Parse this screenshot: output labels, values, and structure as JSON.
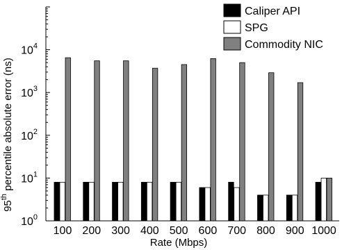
{
  "chart_data": {
    "type": "bar",
    "xlabel": "Rate (Mbps)",
    "ylabel_parts": [
      "95",
      "th",
      " percentile absolute error (ns)"
    ],
    "yscale": "log",
    "ylim": [
      1,
      100000
    ],
    "y_ticks": [
      {
        "base": "10",
        "exp": "0"
      },
      {
        "base": "10",
        "exp": "1"
      },
      {
        "base": "10",
        "exp": "2"
      },
      {
        "base": "10",
        "exp": "3"
      },
      {
        "base": "10",
        "exp": "4"
      }
    ],
    "categories": [
      "100",
      "200",
      "300",
      "400",
      "500",
      "600",
      "700",
      "800",
      "900",
      "1000"
    ],
    "series": [
      {
        "name": "Caliper API",
        "color": "#000000",
        "values": [
          8,
          8,
          8,
          8,
          8,
          6,
          8,
          4,
          4,
          8
        ]
      },
      {
        "name": "SPG",
        "color": "#ffffff",
        "values": [
          8,
          8,
          8,
          8,
          8,
          6,
          6,
          4,
          4,
          10
        ]
      },
      {
        "name": "Commodity NIC",
        "color": "#808080",
        "values": [
          6500,
          5500,
          5500,
          3700,
          4500,
          6200,
          5000,
          2900,
          1700,
          10
        ]
      }
    ],
    "legend_position": "top-right",
    "grid": false
  }
}
